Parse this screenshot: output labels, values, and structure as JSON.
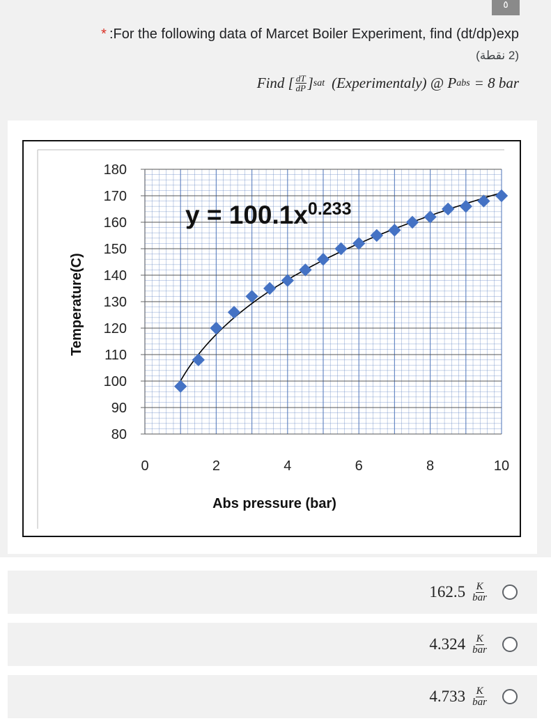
{
  "question": {
    "number": "٥",
    "required_marker": "*",
    "title": ":For the following data of Marcet Boiler Experiment, find (dt/dp)exp",
    "points": "(2 نقطة)",
    "formula": {
      "find": "Find [",
      "num": "dT",
      "den": "dP",
      "close": "]",
      "sub": "sat",
      "rest": "(Experimentaly)  @ P",
      "p_sub": "abs",
      "value": " = 8 bar"
    }
  },
  "chart_data": {
    "type": "scatter",
    "xlabel": "Abs pressure (bar)",
    "ylabel": "Temperature(C)",
    "xlim": [
      0,
      10
    ],
    "ylim": [
      80,
      180
    ],
    "x_ticks": [
      "0",
      "2",
      "4",
      "6",
      "8",
      "10"
    ],
    "y_ticks": [
      "80",
      "90",
      "100",
      "110",
      "120",
      "130",
      "140",
      "150",
      "160",
      "170",
      "180"
    ],
    "grid": true,
    "marker_color": "#4472c4",
    "trendline": {
      "a": 100.1,
      "b": 0.233,
      "color": "#000000"
    },
    "equation_label": "y = 100.1x",
    "equation_exponent": "0.233",
    "series": [
      {
        "x": [
          1,
          1.5,
          2,
          2.5,
          3,
          3.5,
          4,
          4.5,
          5,
          5.5,
          6,
          6.5,
          7,
          7.5,
          8,
          8.5,
          9,
          9.5,
          10
        ],
        "y": [
          98,
          108,
          120,
          126,
          132,
          135,
          138,
          142,
          146,
          150,
          152,
          155,
          157,
          160,
          162,
          165,
          166,
          168,
          170
        ]
      }
    ]
  },
  "options": [
    {
      "value": "162.5",
      "unit_num": "K",
      "unit_den": "bar"
    },
    {
      "value": "4.324",
      "unit_num": "K",
      "unit_den": "bar"
    },
    {
      "value": "4.733",
      "unit_num": "K",
      "unit_den": "bar"
    }
  ]
}
